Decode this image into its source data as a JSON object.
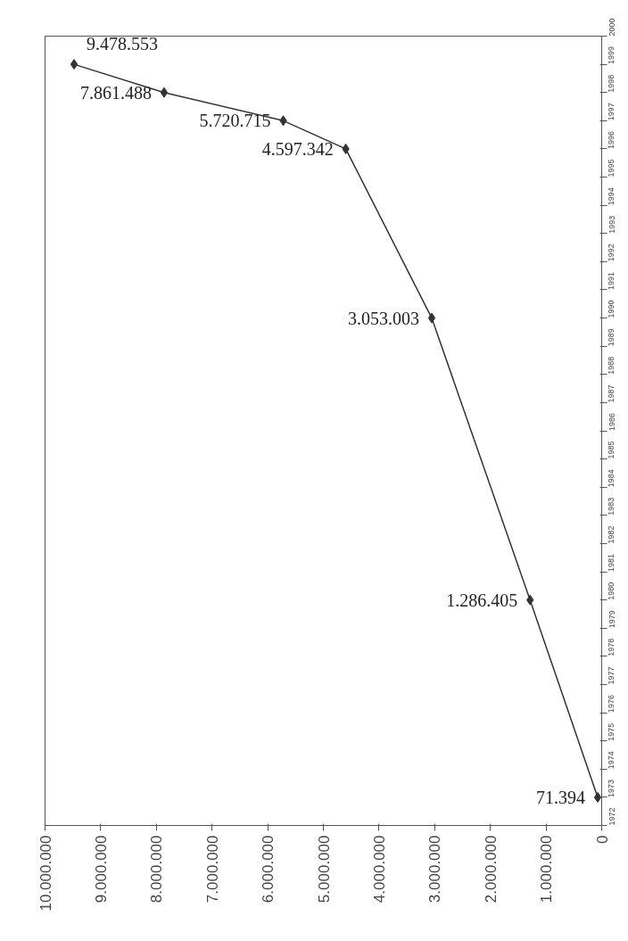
{
  "chart_data": {
    "type": "line",
    "x": [
      71394,
      1286405,
      3053003,
      4597342,
      5720715,
      7861488,
      9478553
    ],
    "series": [
      {
        "color": "#333333",
        "values": [
          1973,
          1980,
          1990,
          1996,
          1997,
          1998,
          1999
        ]
      }
    ],
    "annotations": [
      {
        "text": "71.394",
        "x": 71394,
        "y": 1973
      },
      {
        "text": "1.286.405",
        "x": 1286405,
        "y": 1980
      },
      {
        "text": "3.053.003",
        "x": 3053003,
        "y": 1990
      },
      {
        "text": "4.597.342",
        "x": 4597342,
        "y": 1996
      },
      {
        "text": "5.720.715",
        "x": 5720715,
        "y": 1997
      },
      {
        "text": "7.861.488",
        "x": 7861488,
        "y": 1998
      },
      {
        "text": "9.478.553",
        "x": 9478553,
        "y": 1999
      }
    ],
    "ylim": [
      1972,
      2000
    ],
    "yticks": [
      1972,
      1973,
      1974,
      1975,
      1976,
      1977,
      1978,
      1979,
      1980,
      1981,
      1982,
      1983,
      1984,
      1985,
      1986,
      1987,
      1988,
      1989,
      1990,
      1991,
      1992,
      1993,
      1994,
      1995,
      1996,
      1997,
      1998,
      1999,
      2000
    ],
    "xlim": [
      10000000,
      0
    ],
    "xticks": [
      0,
      {
        "value": 1000000,
        "label": "1.000.000"
      },
      {
        "value": 2000000,
        "label": "2.000.000"
      },
      {
        "value": 3000000,
        "label": "3.000.000"
      },
      {
        "value": 4000000,
        "label": "4.000.000"
      },
      {
        "value": 5000000,
        "label": "5.000.000"
      },
      {
        "value": 6000000,
        "label": "6.000.000"
      },
      {
        "value": 7000000,
        "label": "7.000.000"
      },
      {
        "value": 8000000,
        "label": "8.000.000"
      },
      {
        "value": 9000000,
        "label": "9.000.000"
      },
      {
        "value": 10000000,
        "label": "10.000.000"
      }
    ],
    "marker": "diamond",
    "line_style": "solid",
    "grid": false
  }
}
